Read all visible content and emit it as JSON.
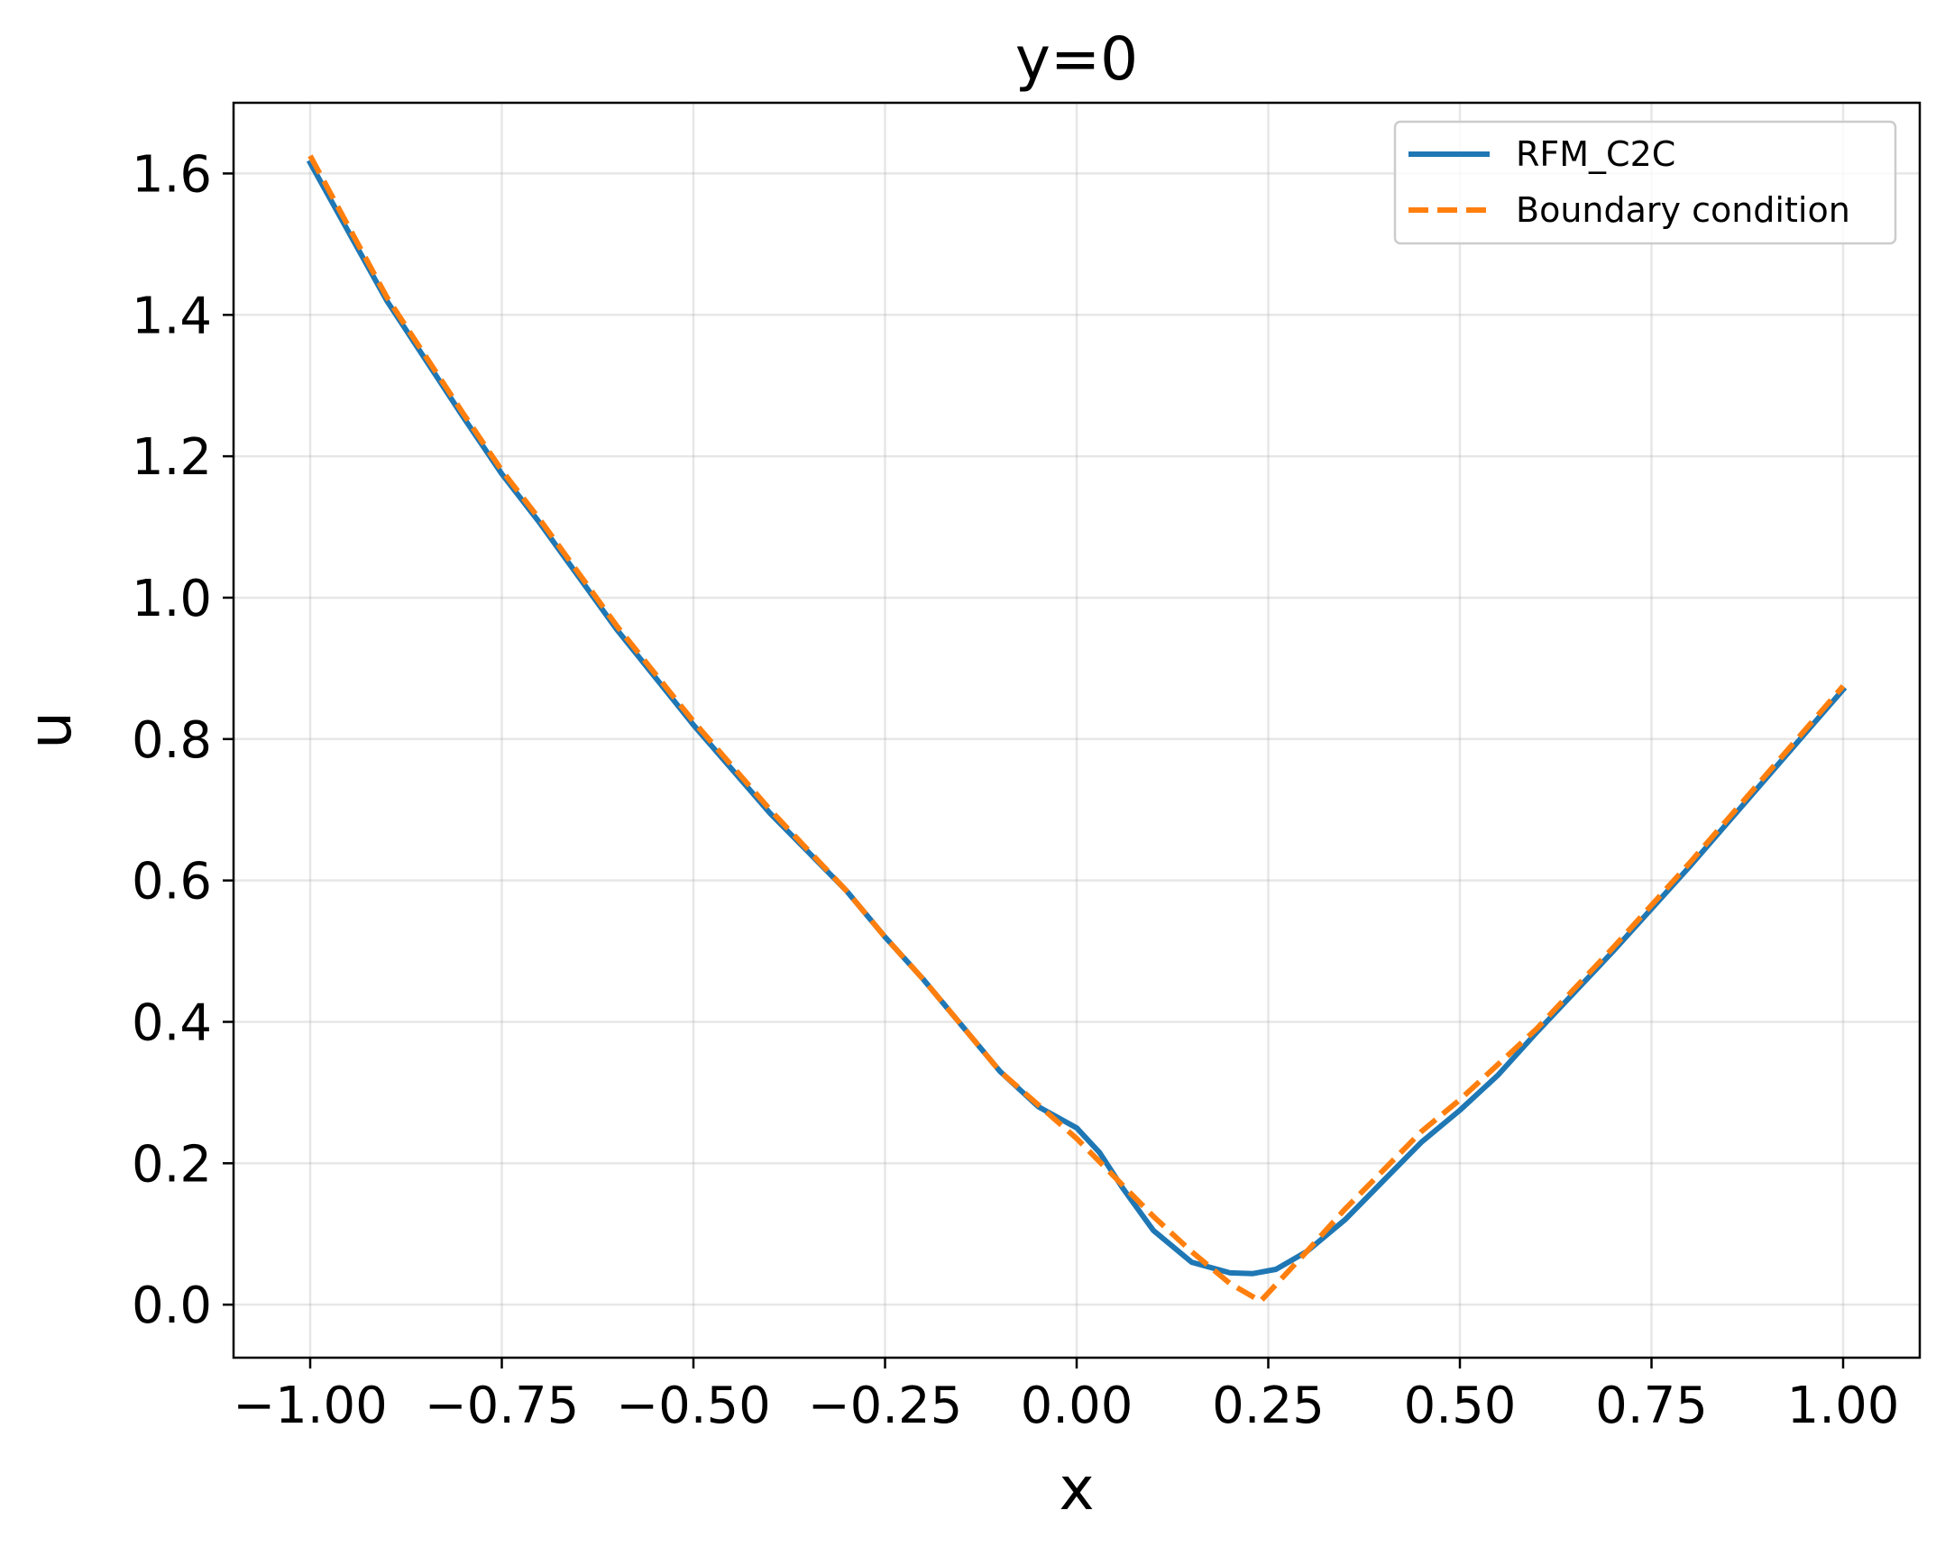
{
  "chart_data": {
    "type": "line",
    "title": "y=0",
    "xlabel": "x",
    "ylabel": "u",
    "xlim": [
      -1.1,
      1.1
    ],
    "ylim": [
      -0.075,
      1.7
    ],
    "grid": true,
    "legend_position": "top-right",
    "x_ticks": [
      -1.0,
      -0.75,
      -0.5,
      -0.25,
      0.0,
      0.25,
      0.5,
      0.75,
      1.0
    ],
    "x_tick_labels": [
      "−1.00",
      "−0.75",
      "−0.50",
      "−0.25",
      "0.00",
      "0.25",
      "0.50",
      "0.75",
      "1.00"
    ],
    "y_ticks": [
      0.0,
      0.2,
      0.4,
      0.6,
      0.8,
      1.0,
      1.2,
      1.4,
      1.6
    ],
    "y_tick_labels": [
      "0.0",
      "0.2",
      "0.4",
      "0.6",
      "0.8",
      "1.0",
      "1.2",
      "1.4",
      "1.6"
    ],
    "series": [
      {
        "name": "RFM_C2C",
        "color": "#1f77b4",
        "style": "solid",
        "x": [
          -1.0,
          -0.9,
          -0.8,
          -0.75,
          -0.7,
          -0.6,
          -0.5,
          -0.4,
          -0.3,
          -0.25,
          -0.2,
          -0.15,
          -0.1,
          -0.05,
          0.0,
          0.03,
          0.06,
          0.1,
          0.15,
          0.2,
          0.23,
          0.26,
          0.3,
          0.35,
          0.4,
          0.45,
          0.5,
          0.55,
          0.6,
          0.7,
          0.8,
          0.9,
          1.0
        ],
        "y": [
          1.615,
          1.42,
          1.255,
          1.175,
          1.105,
          0.955,
          0.82,
          0.695,
          0.585,
          0.52,
          0.46,
          0.395,
          0.33,
          0.28,
          0.25,
          0.215,
          0.165,
          0.105,
          0.06,
          0.045,
          0.044,
          0.05,
          0.075,
          0.12,
          0.175,
          0.23,
          0.275,
          0.325,
          0.385,
          0.5,
          0.62,
          0.745,
          0.87
        ]
      },
      {
        "name": "Boundary condition",
        "color": "#ff7f0e",
        "style": "dashed",
        "x": [
          -1.0,
          -0.9,
          -0.8,
          -0.75,
          -0.7,
          -0.6,
          -0.5,
          -0.4,
          -0.3,
          -0.25,
          -0.2,
          -0.1,
          0.0,
          0.05,
          0.1,
          0.15,
          0.2,
          0.24,
          0.3,
          0.35,
          0.4,
          0.45,
          0.5,
          0.55,
          0.6,
          0.7,
          0.8,
          0.9,
          1.0
        ],
        "y": [
          1.625,
          1.425,
          1.26,
          1.18,
          1.11,
          0.96,
          0.825,
          0.7,
          0.585,
          0.52,
          0.46,
          0.33,
          0.235,
          0.18,
          0.125,
          0.075,
          0.03,
          0.005,
          0.075,
          0.135,
          0.19,
          0.245,
          0.29,
          0.34,
          0.39,
          0.505,
          0.625,
          0.75,
          0.875
        ]
      }
    ]
  }
}
